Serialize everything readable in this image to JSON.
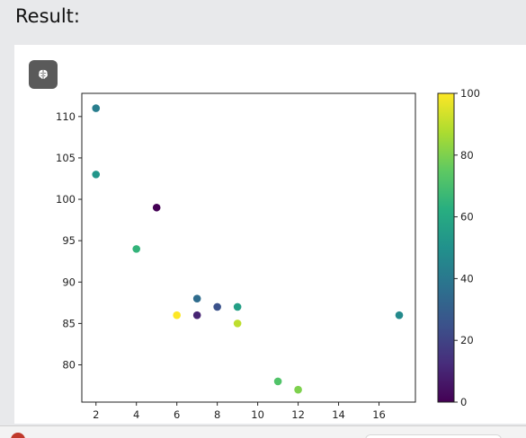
{
  "heading": "Result:",
  "ai_button": {
    "icon": "brain-icon"
  },
  "colors": {
    "background": "#e8e9eb",
    "panel": "#ffffff",
    "button": "#5a5a5a",
    "error": "#c0392b"
  },
  "chart_data": {
    "type": "scatter",
    "colormap": "viridis",
    "colorbar_range": [
      0,
      100
    ],
    "colorbar_ticks": [
      0,
      20,
      40,
      60,
      80,
      100
    ],
    "xlim": [
      1.3,
      17.8
    ],
    "ylim": [
      75.5,
      112.8
    ],
    "xticks": [
      2,
      4,
      6,
      8,
      10,
      12,
      14,
      16
    ],
    "yticks": [
      80,
      85,
      90,
      95,
      100,
      105,
      110
    ],
    "grid": false,
    "points": [
      {
        "x": 5,
        "y": 99,
        "c": 0
      },
      {
        "x": 7,
        "y": 86,
        "c": 10
      },
      {
        "x": 8,
        "y": 87,
        "c": 25
      },
      {
        "x": 7,
        "y": 88,
        "c": 35
      },
      {
        "x": 2,
        "y": 111,
        "c": 42
      },
      {
        "x": 17,
        "y": 86,
        "c": 47
      },
      {
        "x": 2,
        "y": 103,
        "c": 52
      },
      {
        "x": 9,
        "y": 87,
        "c": 56
      },
      {
        "x": 4,
        "y": 94,
        "c": 65
      },
      {
        "x": 11,
        "y": 78,
        "c": 72
      },
      {
        "x": 12,
        "y": 77,
        "c": 80
      },
      {
        "x": 9,
        "y": 85,
        "c": 90
      },
      {
        "x": 6,
        "y": 86,
        "c": 100
      }
    ]
  }
}
